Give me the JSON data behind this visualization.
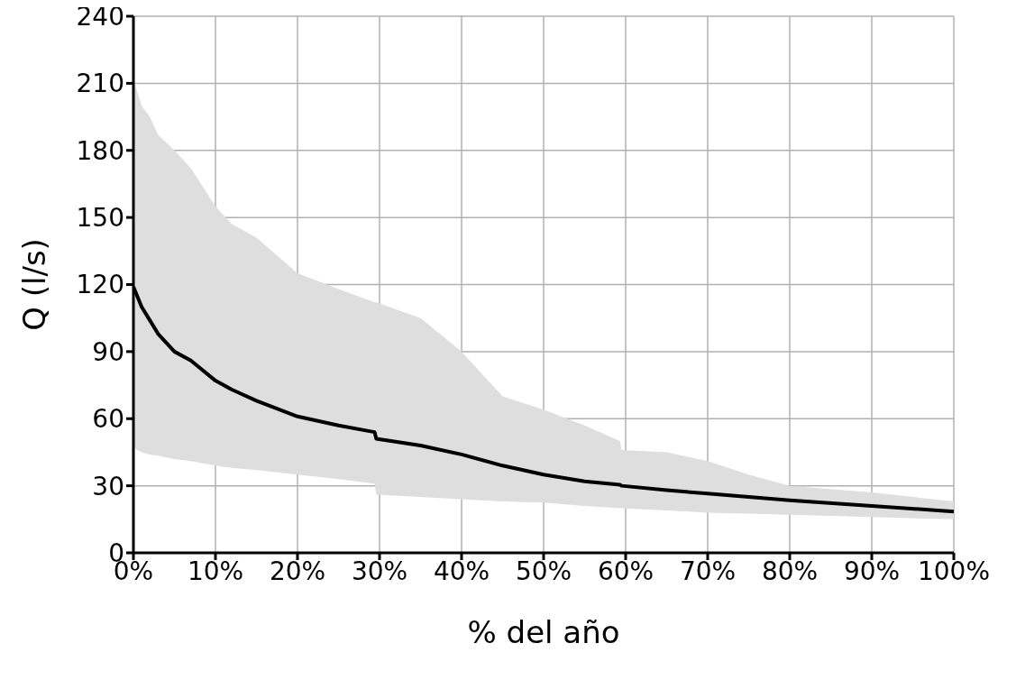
{
  "chart_data": {
    "type": "line",
    "xlabel": "% del año",
    "ylabel": "Q (l/s)",
    "x": [
      0,
      1,
      2,
      3,
      5,
      7,
      10,
      12,
      15,
      20,
      25,
      29.4,
      29.6,
      35,
      40,
      45,
      50,
      55,
      59.3,
      59.5,
      65,
      70,
      75,
      80,
      90,
      100
    ],
    "series": [
      {
        "color": "#000000",
        "values": [
          119,
          110,
          104,
          98,
          90,
          86,
          77,
          73,
          68,
          61,
          57,
          54,
          51,
          48,
          44,
          39,
          35,
          32,
          30.5,
          30,
          28,
          26.5,
          25,
          23.5,
          21,
          18.5
        ],
        "upper": [
          212,
          200,
          195,
          187,
          180,
          172,
          155,
          147,
          141,
          125,
          118,
          112,
          112,
          105,
          90,
          70,
          64,
          57,
          50,
          46,
          45,
          41,
          35,
          30,
          27,
          23
        ],
        "lower": [
          47,
          45,
          44,
          43.5,
          42,
          41,
          39,
          38,
          37,
          35,
          33,
          31,
          26,
          25,
          24,
          23,
          22.5,
          21,
          20,
          20,
          19,
          18,
          17.5,
          17,
          16,
          15
        ]
      }
    ],
    "xlim": [
      0,
      100
    ],
    "xticks": [
      {
        "value": 0,
        "label": "0%"
      },
      {
        "value": 10,
        "label": "10%"
      },
      {
        "value": 20,
        "label": "20%"
      },
      {
        "value": 30,
        "label": "30%"
      },
      {
        "value": 40,
        "label": "40%"
      },
      {
        "value": 50,
        "label": "50%"
      },
      {
        "value": 60,
        "label": "60%"
      },
      {
        "value": 70,
        "label": "70%"
      },
      {
        "value": 80,
        "label": "80%"
      },
      {
        "value": 90,
        "label": "90%"
      },
      {
        "value": 100,
        "label": "100%"
      }
    ],
    "ylim": [
      0,
      240
    ],
    "yticks": [
      0,
      30,
      60,
      90,
      120,
      150,
      180,
      210,
      240
    ],
    "grid": true,
    "legend": false,
    "marker": "none",
    "line_style": "solid"
  }
}
